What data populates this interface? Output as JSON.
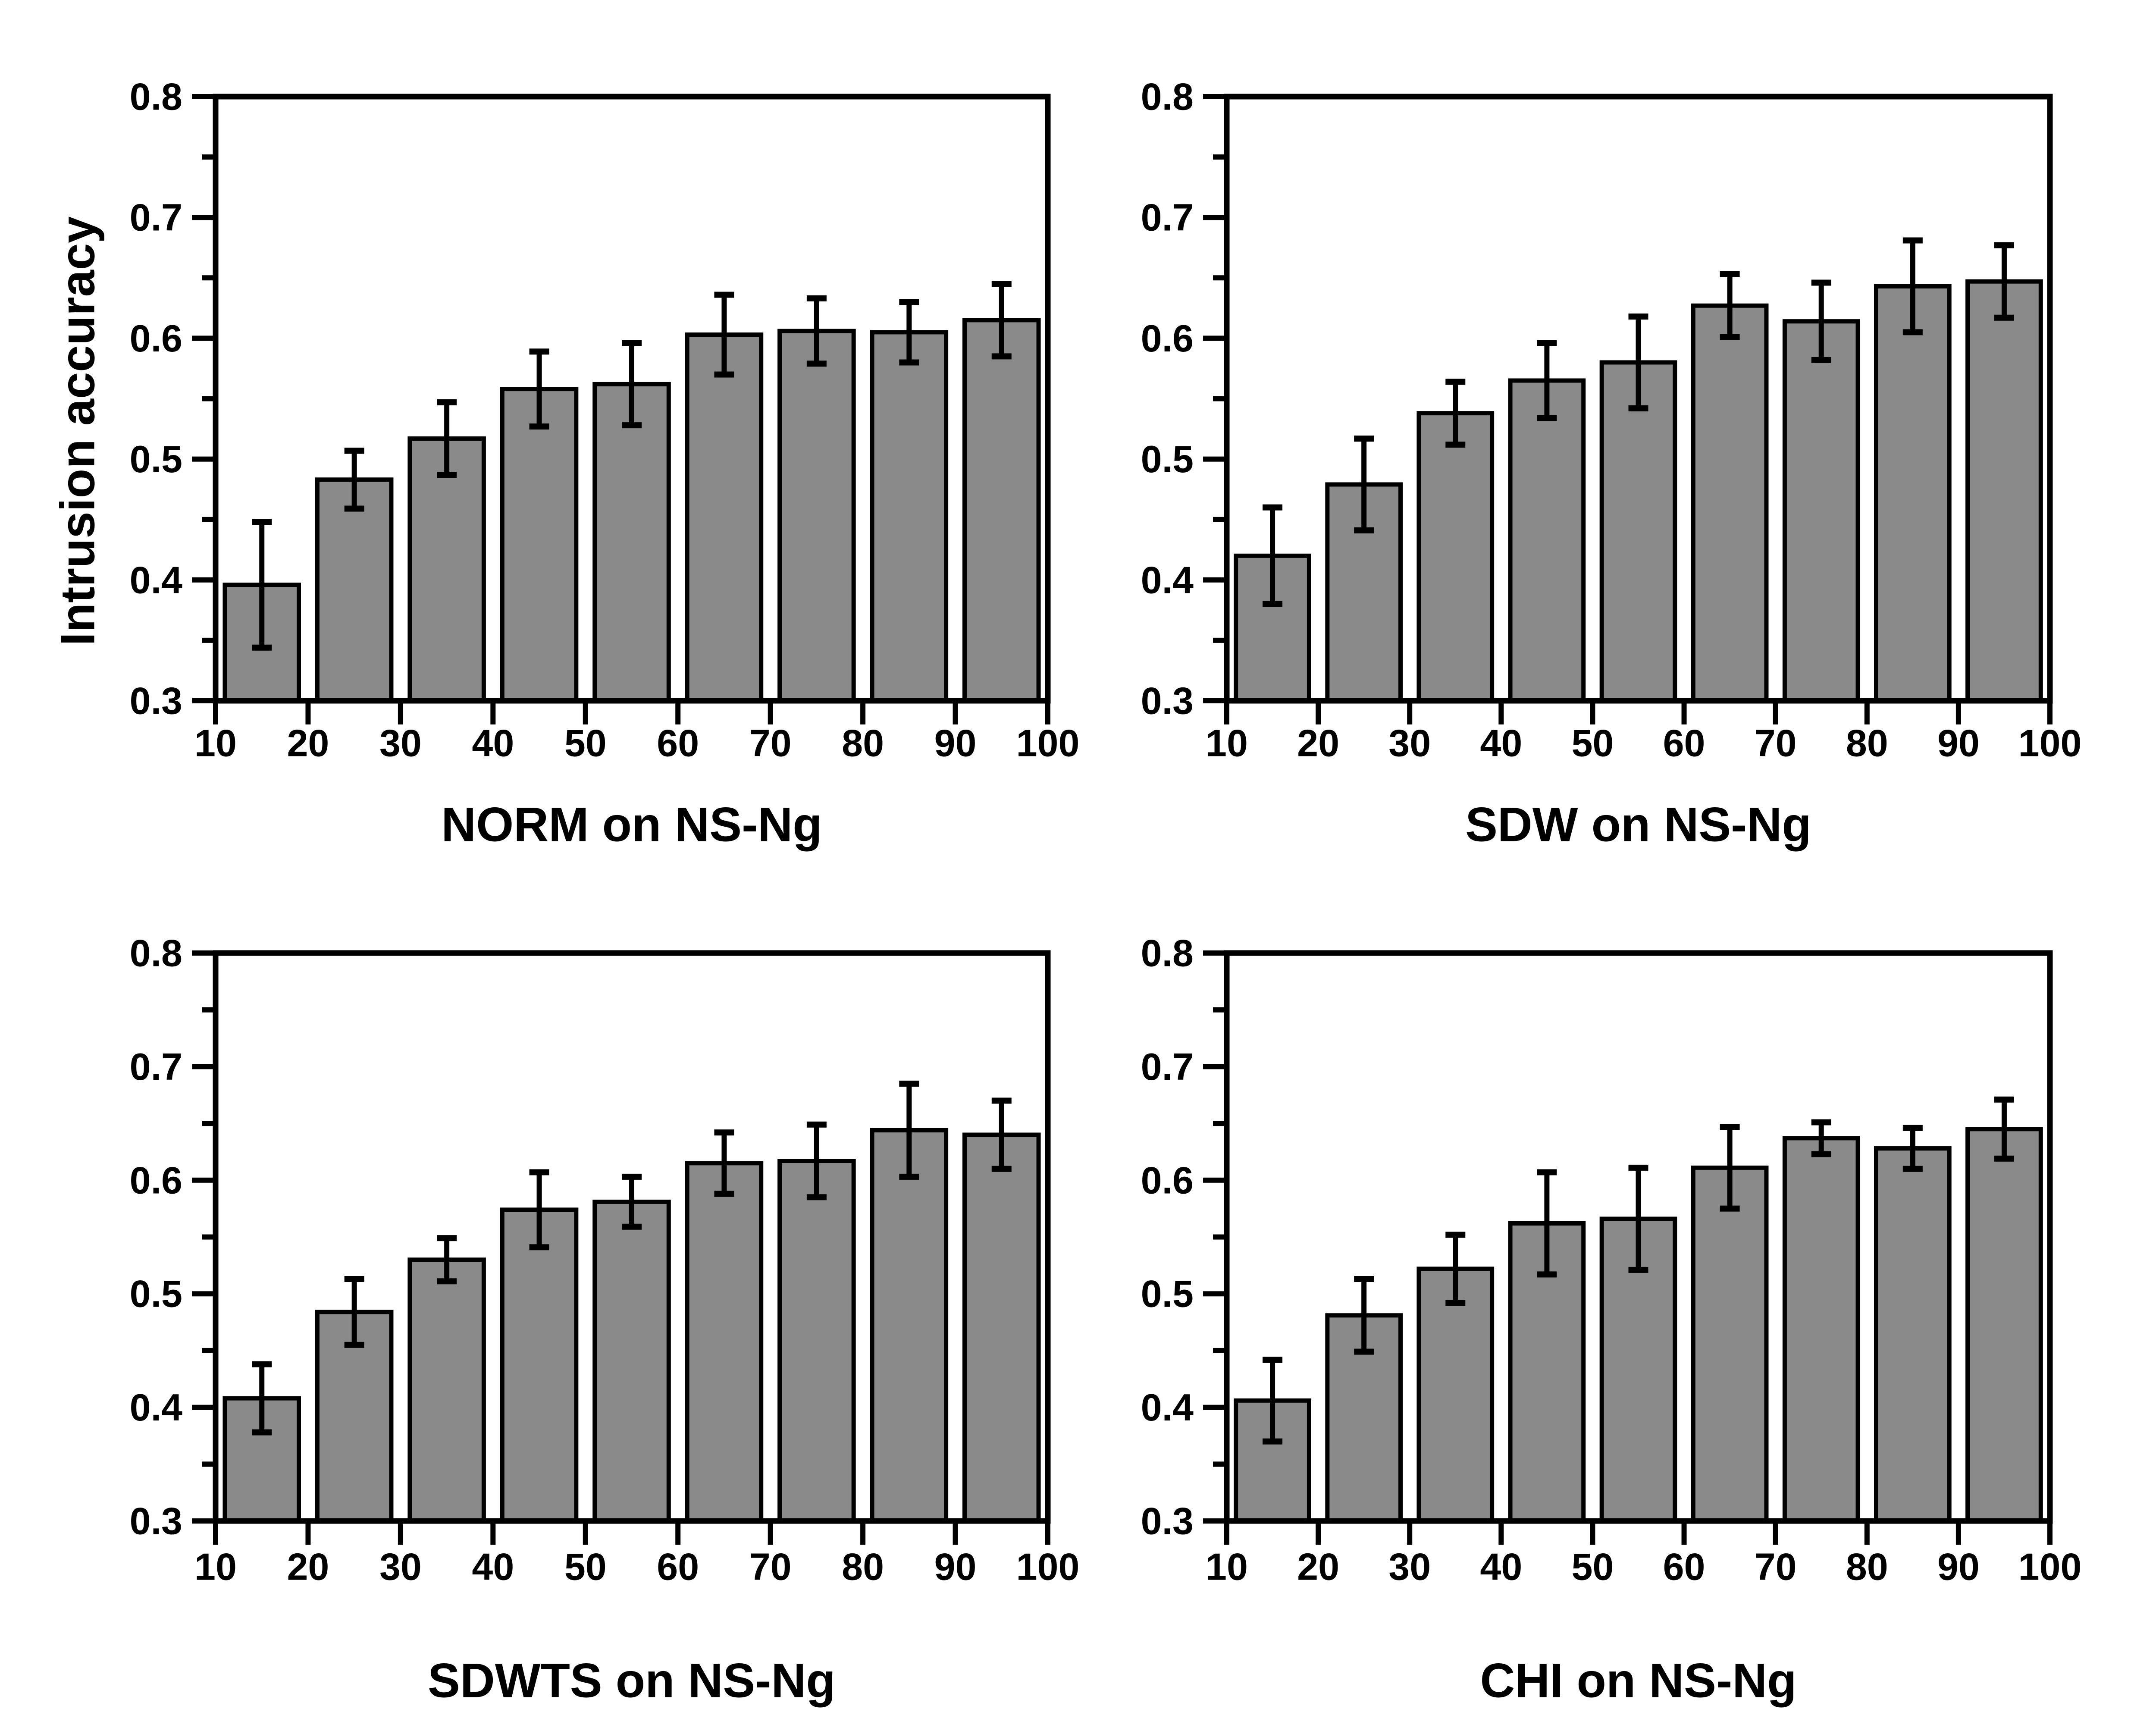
{
  "figure": {
    "background_color": "#ffffff",
    "ink_color": "#000000",
    "bar_fill_color": "#8a8a8a",
    "shared_ylabel": "Intrusion accuracy"
  },
  "chart_data": [
    {
      "type": "bar",
      "title": "NORM on NS-Ng",
      "ylabel": "Intrusion accuracy",
      "xlabel": "NORM on NS-Ng",
      "xlim": [
        10,
        100
      ],
      "ylim": [
        0.3,
        0.8
      ],
      "x_ticks": [
        10,
        20,
        30,
        40,
        50,
        60,
        70,
        80,
        90,
        100
      ],
      "x_tick_labels": [
        "10",
        "20",
        "30",
        "40",
        "50",
        "60",
        "70",
        "80",
        "90",
        "100"
      ],
      "y_ticks": [
        0.3,
        0.4,
        0.5,
        0.6,
        0.7,
        0.8
      ],
      "y_tick_labels": [
        "0.3",
        "0.4",
        "0.5",
        "0.6",
        "0.7",
        "0.8"
      ],
      "y_minor_ticks": [
        0.35,
        0.45,
        0.55,
        0.65,
        0.75
      ],
      "grid": false,
      "legend": null,
      "bar_centers": [
        15,
        25,
        35,
        45,
        55,
        65,
        75,
        85,
        95
      ],
      "bar_width_x_units": 8,
      "values": [
        0.396,
        0.483,
        0.517,
        0.558,
        0.562,
        0.603,
        0.606,
        0.605,
        0.615
      ],
      "errors": [
        0.052,
        0.024,
        0.03,
        0.031,
        0.034,
        0.033,
        0.027,
        0.025,
        0.03
      ]
    },
    {
      "type": "bar",
      "title": "SDW on NS-Ng",
      "ylabel": "",
      "xlabel": "SDW on NS-Ng",
      "xlim": [
        10,
        100
      ],
      "ylim": [
        0.3,
        0.8
      ],
      "x_ticks": [
        10,
        20,
        30,
        40,
        50,
        60,
        70,
        80,
        90,
        100
      ],
      "x_tick_labels": [
        "10",
        "20",
        "30",
        "40",
        "50",
        "60",
        "70",
        "80",
        "90",
        "100"
      ],
      "y_ticks": [
        0.3,
        0.4,
        0.5,
        0.6,
        0.7,
        0.8
      ],
      "y_tick_labels": [
        "0.3",
        "0.4",
        "0.5",
        "0.6",
        "0.7",
        "0.8"
      ],
      "y_minor_ticks": [
        0.35,
        0.45,
        0.55,
        0.65,
        0.75
      ],
      "grid": false,
      "legend": null,
      "bar_centers": [
        15,
        25,
        35,
        45,
        55,
        65,
        75,
        85,
        95
      ],
      "bar_width_x_units": 8,
      "values": [
        0.42,
        0.479,
        0.538,
        0.565,
        0.58,
        0.627,
        0.614,
        0.643,
        0.647
      ],
      "errors": [
        0.04,
        0.038,
        0.026,
        0.031,
        0.038,
        0.026,
        0.032,
        0.038,
        0.03
      ]
    },
    {
      "type": "bar",
      "title": "SDWTS on NS-Ng",
      "ylabel": "",
      "xlabel": "SDWTS on NS-Ng",
      "xlim": [
        10,
        100
      ],
      "ylim": [
        0.3,
        0.8
      ],
      "x_ticks": [
        10,
        20,
        30,
        40,
        50,
        60,
        70,
        80,
        90,
        100
      ],
      "x_tick_labels": [
        "10",
        "20",
        "30",
        "40",
        "50",
        "60",
        "70",
        "80",
        "90",
        "100"
      ],
      "y_ticks": [
        0.3,
        0.4,
        0.5,
        0.6,
        0.7,
        0.8
      ],
      "y_tick_labels": [
        "0.3",
        "0.4",
        "0.5",
        "0.6",
        "0.7",
        "0.8"
      ],
      "y_minor_ticks": [
        0.35,
        0.45,
        0.55,
        0.65,
        0.75
      ],
      "grid": false,
      "legend": null,
      "bar_centers": [
        15,
        25,
        35,
        45,
        55,
        65,
        75,
        85,
        95
      ],
      "bar_width_x_units": 8,
      "values": [
        0.408,
        0.484,
        0.53,
        0.574,
        0.581,
        0.615,
        0.617,
        0.644,
        0.64
      ],
      "errors": [
        0.03,
        0.029,
        0.019,
        0.033,
        0.022,
        0.027,
        0.032,
        0.041,
        0.03
      ]
    },
    {
      "type": "bar",
      "title": "CHI on NS-Ng",
      "ylabel": "",
      "xlabel": "CHI on NS-Ng",
      "xlim": [
        10,
        100
      ],
      "ylim": [
        0.3,
        0.8
      ],
      "x_ticks": [
        10,
        20,
        30,
        40,
        50,
        60,
        70,
        80,
        90,
        100
      ],
      "x_tick_labels": [
        "10",
        "20",
        "30",
        "40",
        "50",
        "60",
        "70",
        "80",
        "90",
        "100"
      ],
      "y_ticks": [
        0.3,
        0.4,
        0.5,
        0.6,
        0.7,
        0.8
      ],
      "y_tick_labels": [
        "0.3",
        "0.4",
        "0.5",
        "0.6",
        "0.7",
        "0.8"
      ],
      "y_minor_ticks": [
        0.35,
        0.45,
        0.55,
        0.65,
        0.75
      ],
      "grid": false,
      "legend": null,
      "bar_centers": [
        15,
        25,
        35,
        45,
        55,
        65,
        75,
        85,
        95
      ],
      "bar_width_x_units": 8,
      "values": [
        0.406,
        0.481,
        0.522,
        0.562,
        0.566,
        0.611,
        0.637,
        0.628,
        0.645
      ],
      "errors": [
        0.036,
        0.032,
        0.03,
        0.045,
        0.045,
        0.036,
        0.014,
        0.018,
        0.026
      ]
    }
  ]
}
